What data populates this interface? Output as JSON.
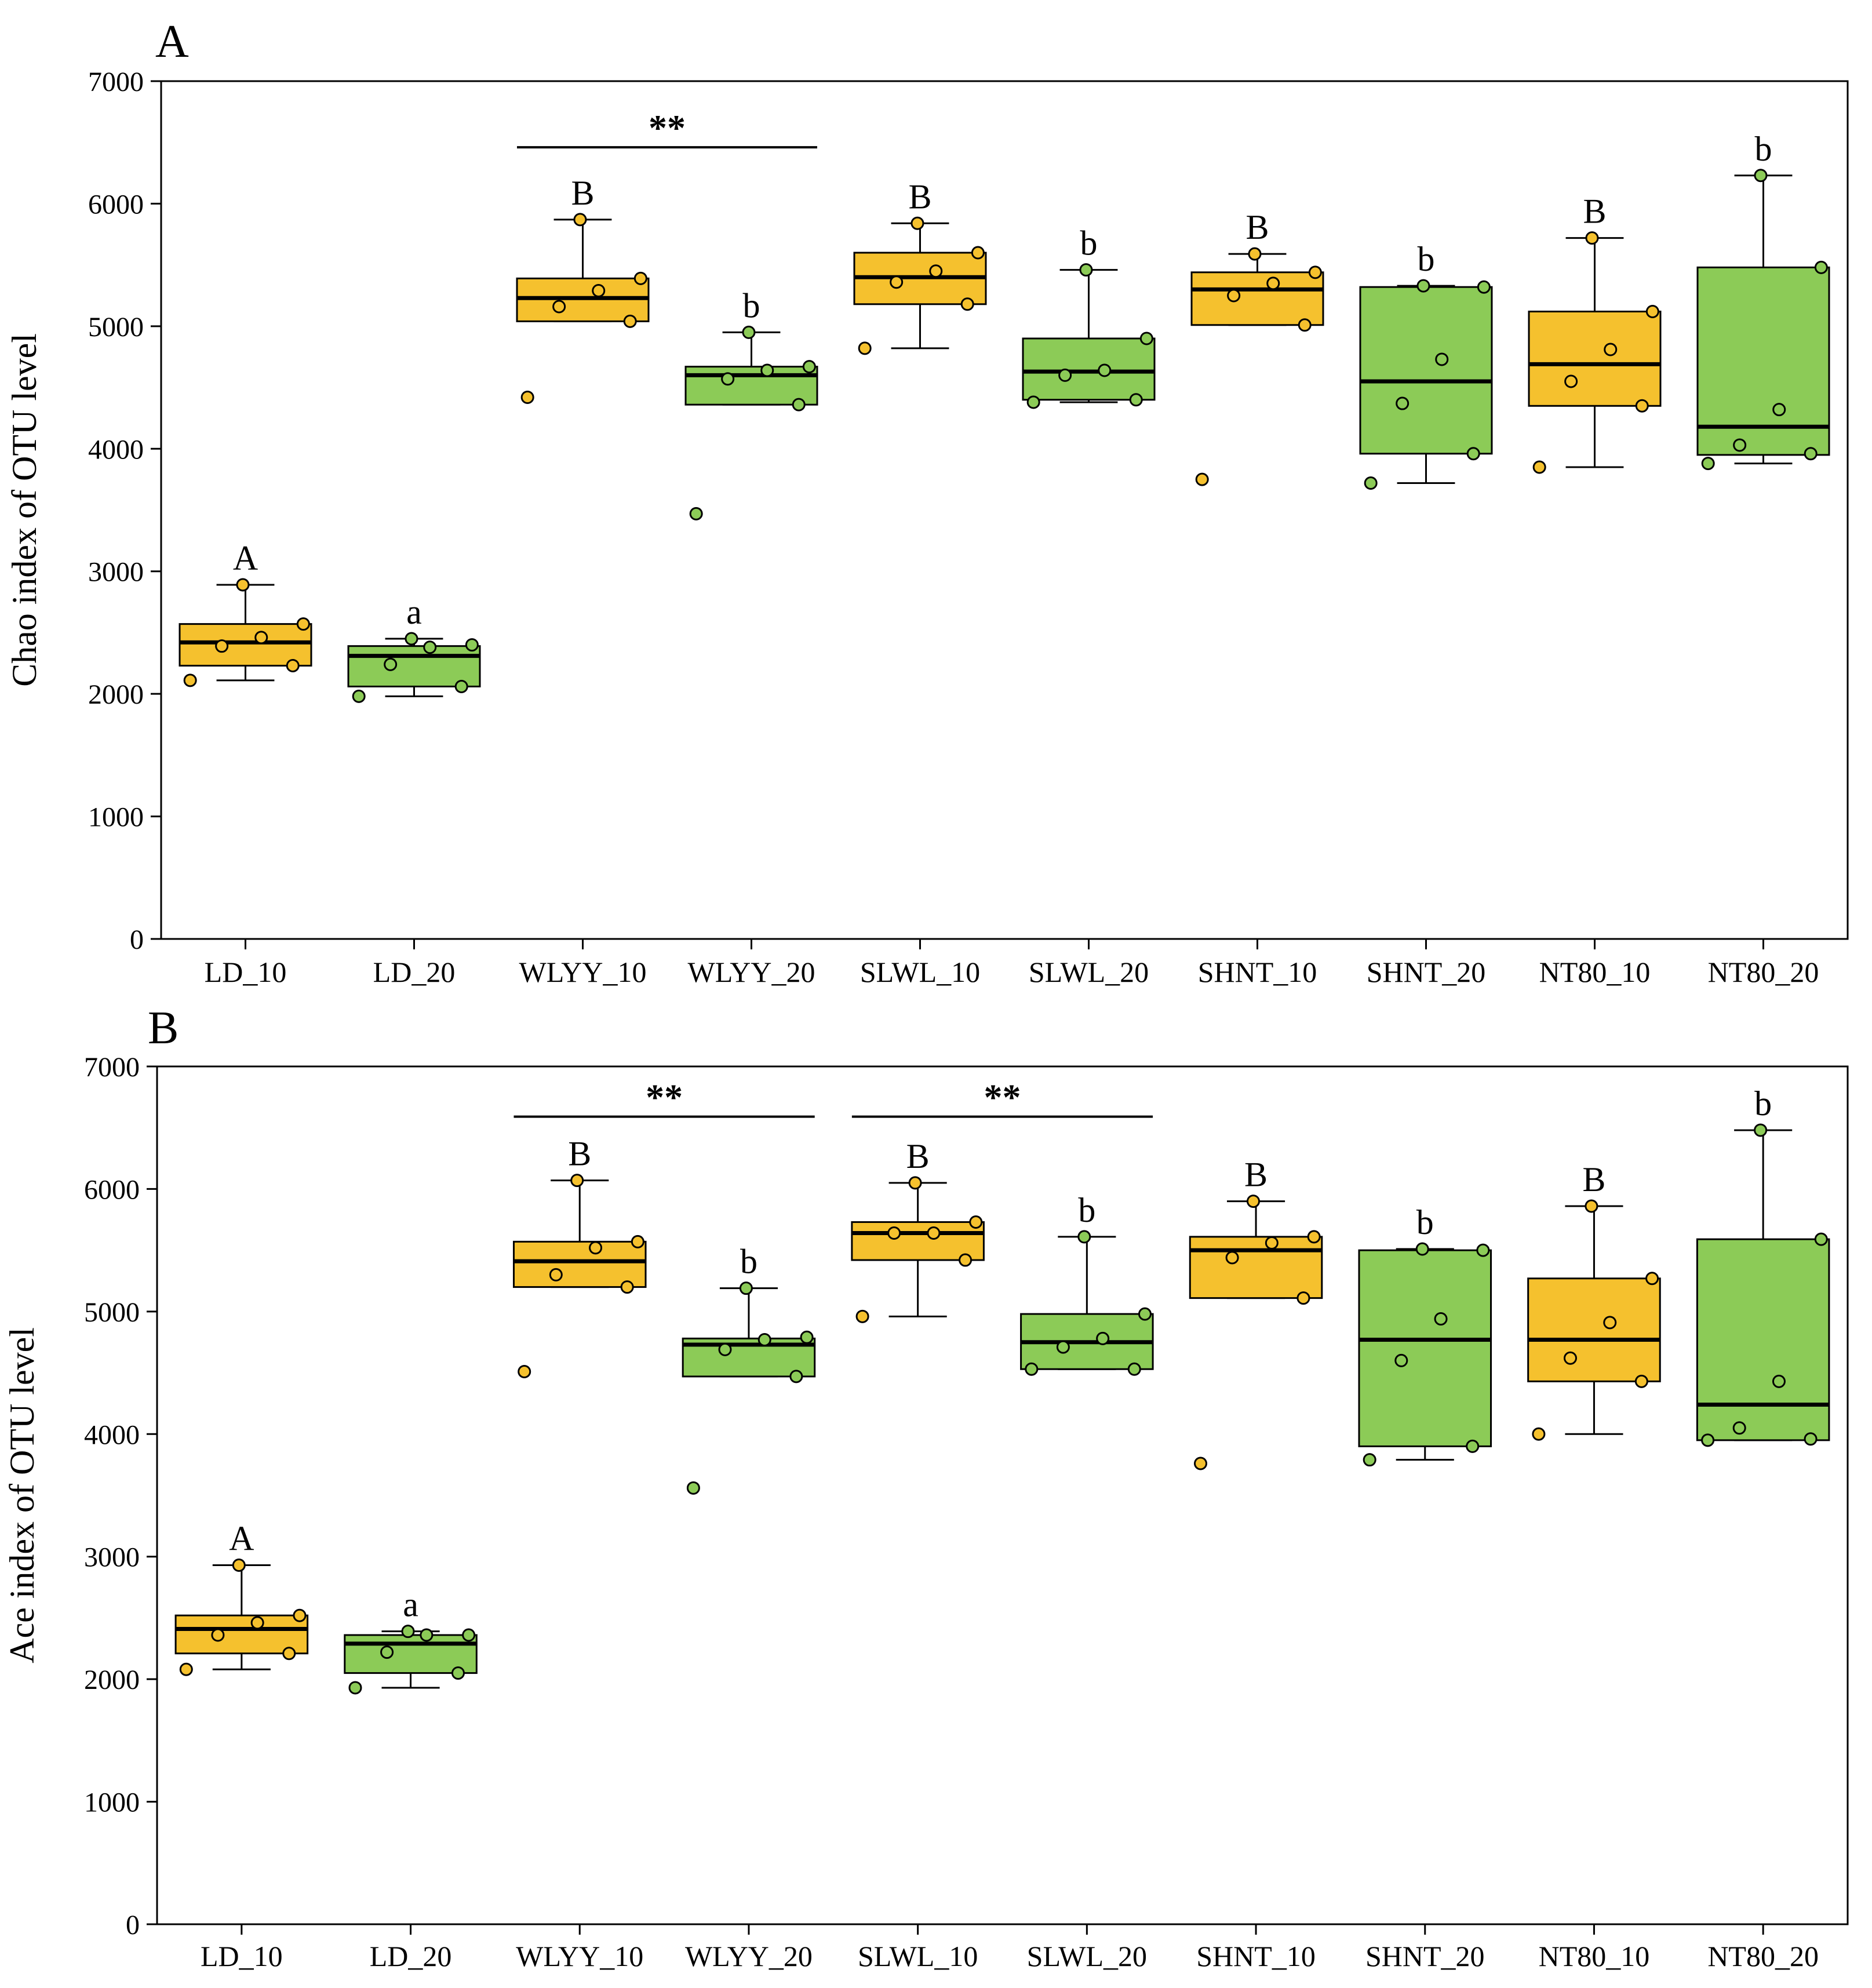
{
  "colors": {
    "layer_10": "#F5C12E",
    "layer_20": "#8CCB57",
    "line": "#000000",
    "background": "#FFFFFF"
  },
  "chart_data": [
    {
      "type": "box",
      "panel_label": "A",
      "ylabel": "Chao index of OTU level",
      "xlabel": "",
      "ylim": [
        0,
        7000
      ],
      "yticks": [
        0,
        1000,
        2000,
        3000,
        4000,
        5000,
        6000,
        7000
      ],
      "categories": [
        "LD_10",
        "LD_20",
        "WLYY_10",
        "WLYY_20",
        "SLWL_10",
        "SLWL_20",
        "SHNT_10",
        "SHNT_20",
        "NT80_10",
        "NT80_20"
      ],
      "series": [
        {
          "name": "LD_10",
          "layer": "10",
          "whisker_low": 2110,
          "q1": 2230,
          "median": 2420,
          "q3": 2570,
          "whisker_high": 2890,
          "points": [
            2110,
            2230,
            2390,
            2460,
            2570,
            2890
          ],
          "letter": "A"
        },
        {
          "name": "LD_20",
          "layer": "20",
          "whisker_low": 1980,
          "q1": 2060,
          "median": 2310,
          "q3": 2390,
          "whisker_high": 2450,
          "points": [
            1980,
            2060,
            2240,
            2380,
            2400,
            2450
          ],
          "letter": "a"
        },
        {
          "name": "WLYY_10",
          "layer": "10",
          "whisker_low": 5040,
          "q1": 5040,
          "median": 5230,
          "q3": 5390,
          "whisker_high": 5870,
          "points": [
            4420,
            5040,
            5160,
            5290,
            5390,
            5870
          ],
          "letter": "B"
        },
        {
          "name": "WLYY_20",
          "layer": "20",
          "whisker_low": 4360,
          "q1": 4360,
          "median": 4600,
          "q3": 4670,
          "whisker_high": 4950,
          "points": [
            3470,
            4360,
            4570,
            4640,
            4670,
            4950
          ],
          "letter": "b"
        },
        {
          "name": "SLWL_10",
          "layer": "10",
          "whisker_low": 4820,
          "q1": 5180,
          "median": 5400,
          "q3": 5600,
          "whisker_high": 5840,
          "points": [
            4820,
            5180,
            5360,
            5450,
            5600,
            5840
          ],
          "letter": "B"
        },
        {
          "name": "SLWL_20",
          "layer": "20",
          "whisker_low": 4380,
          "q1": 4400,
          "median": 4630,
          "q3": 4900,
          "whisker_high": 5460,
          "points": [
            4380,
            4400,
            4600,
            4640,
            4900,
            5460
          ],
          "letter": "b"
        },
        {
          "name": "SHNT_10",
          "layer": "10",
          "whisker_low": 5010,
          "q1": 5010,
          "median": 5300,
          "q3": 5440,
          "whisker_high": 5590,
          "points": [
            3750,
            5010,
            5250,
            5350,
            5440,
            5590
          ],
          "letter": "B"
        },
        {
          "name": "SHNT_20",
          "layer": "20",
          "whisker_low": 3720,
          "q1": 3960,
          "median": 4550,
          "q3": 5320,
          "whisker_high": 5330,
          "points": [
            3720,
            3960,
            4370,
            4730,
            5320,
            5330
          ],
          "letter": "b"
        },
        {
          "name": "NT80_10",
          "layer": "10",
          "whisker_low": 3850,
          "q1": 4350,
          "median": 4690,
          "q3": 5120,
          "whisker_high": 5720,
          "points": [
            3850,
            4350,
            4550,
            4810,
            5120,
            5720
          ],
          "letter": "B"
        },
        {
          "name": "NT80_20",
          "layer": "20",
          "whisker_low": 3880,
          "q1": 3950,
          "median": 4180,
          "q3": 5480,
          "whisker_high": 6230,
          "points": [
            3880,
            3960,
            4030,
            4320,
            5480,
            6230
          ],
          "letter": "b"
        }
      ],
      "brackets": [
        {
          "from": "WLYY_10",
          "to": "WLYY_20",
          "label": "**",
          "y": 6460
        }
      ]
    },
    {
      "type": "box",
      "panel_label": "B",
      "ylabel": "Ace index of OTU level",
      "xlabel": "",
      "ylim": [
        0,
        7000
      ],
      "yticks": [
        0,
        1000,
        2000,
        3000,
        4000,
        5000,
        6000,
        7000
      ],
      "categories": [
        "LD_10",
        "LD_20",
        "WLYY_10",
        "WLYY_20",
        "SLWL_10",
        "SLWL_20",
        "SHNT_10",
        "SHNT_20",
        "NT80_10",
        "NT80_20"
      ],
      "series": [
        {
          "name": "LD_10",
          "layer": "10",
          "whisker_low": 2080,
          "q1": 2210,
          "median": 2410,
          "q3": 2520,
          "whisker_high": 2930,
          "points": [
            2080,
            2210,
            2360,
            2460,
            2520,
            2930
          ],
          "letter": "A"
        },
        {
          "name": "LD_20",
          "layer": "20",
          "whisker_low": 1930,
          "q1": 2050,
          "median": 2290,
          "q3": 2360,
          "whisker_high": 2390,
          "points": [
            1930,
            2050,
            2220,
            2360,
            2360,
            2390
          ],
          "letter": "a"
        },
        {
          "name": "WLYY_10",
          "layer": "10",
          "whisker_low": 5200,
          "q1": 5200,
          "median": 5410,
          "q3": 5570,
          "whisker_high": 6070,
          "points": [
            4510,
            5200,
            5300,
            5520,
            5570,
            6070
          ],
          "letter": "B"
        },
        {
          "name": "WLYY_20",
          "layer": "20",
          "whisker_low": 4470,
          "q1": 4470,
          "median": 4730,
          "q3": 4780,
          "whisker_high": 5190,
          "points": [
            3560,
            4470,
            4690,
            4770,
            4790,
            5190
          ],
          "letter": "b"
        },
        {
          "name": "SLWL_10",
          "layer": "10",
          "whisker_low": 4960,
          "q1": 5420,
          "median": 5640,
          "q3": 5730,
          "whisker_high": 6050,
          "points": [
            4960,
            5420,
            5640,
            5640,
            5730,
            6050
          ],
          "letter": "B"
        },
        {
          "name": "SLWL_20",
          "layer": "20",
          "whisker_low": 4530,
          "q1": 4530,
          "median": 4750,
          "q3": 4980,
          "whisker_high": 5610,
          "points": [
            4530,
            4530,
            4710,
            4780,
            4980,
            5610
          ],
          "letter": "b"
        },
        {
          "name": "SHNT_10",
          "layer": "10",
          "whisker_low": 5110,
          "q1": 5110,
          "median": 5500,
          "q3": 5610,
          "whisker_high": 5900,
          "points": [
            3760,
            5110,
            5440,
            5560,
            5610,
            5900
          ],
          "letter": "B"
        },
        {
          "name": "SHNT_20",
          "layer": "20",
          "whisker_low": 3790,
          "q1": 3900,
          "median": 4770,
          "q3": 5500,
          "whisker_high": 5510,
          "points": [
            3790,
            3900,
            4600,
            4940,
            5500,
            5510
          ],
          "letter": "b"
        },
        {
          "name": "NT80_10",
          "layer": "10",
          "whisker_low": 4000,
          "q1": 4430,
          "median": 4770,
          "q3": 5270,
          "whisker_high": 5860,
          "points": [
            4000,
            4430,
            4620,
            4910,
            5270,
            5860
          ],
          "letter": "B"
        },
        {
          "name": "NT80_20",
          "layer": "20",
          "whisker_low": 3950,
          "q1": 3950,
          "median": 4240,
          "q3": 5590,
          "whisker_high": 6480,
          "points": [
            3950,
            3960,
            4050,
            4430,
            5590,
            6480
          ],
          "letter": "b"
        }
      ],
      "brackets": [
        {
          "from": "WLYY_10",
          "to": "WLYY_20",
          "label": "**",
          "y": 6590
        },
        {
          "from": "SLWL_10",
          "to": "SLWL_20",
          "label": "**",
          "y": 6590
        }
      ]
    }
  ]
}
